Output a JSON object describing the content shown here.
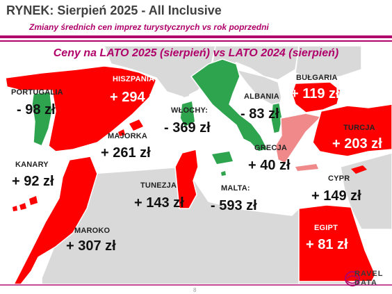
{
  "header": {
    "title": "RYNEK: Sierpień 2025 - All Inclusive",
    "subtitle": "Zmiany średnich cen imprez turystycznych vs rok poprzedni"
  },
  "map": {
    "title": "Ceny na LATO 2025 (sierpień) vs  LATO 2024 (sierpień)",
    "colors": {
      "increase": "#ff0000",
      "decrease": "#2ea44f",
      "moderate": "#f08a8a",
      "neutral": "#d9d9d9",
      "accent": "#b0006a"
    },
    "countries": [
      {
        "name": "PORTUGALIA",
        "change": "- 98 zł",
        "trend": "decrease"
      },
      {
        "name": "HISZPANIA:",
        "change": "+ 294 zł",
        "trend": "increase"
      },
      {
        "name": "MAJORKA",
        "change": "+ 261 zł",
        "trend": "increase"
      },
      {
        "name": "KANARY",
        "change": "+ 92 zł",
        "trend": "increase"
      },
      {
        "name": "MAROKO",
        "change": "+ 307 zł",
        "trend": "increase"
      },
      {
        "name": "TUNEZJA",
        "change": "+ 143 zł",
        "trend": "increase"
      },
      {
        "name": "WŁOCHY:",
        "change": "- 369 zł",
        "trend": "decrease"
      },
      {
        "name": "MALTA:",
        "change": "- 593 zł",
        "trend": "decrease"
      },
      {
        "name": "ALBANIA",
        "change": "- 83 zł",
        "trend": "decrease"
      },
      {
        "name": "GRECJA",
        "change": "+ 40 zł",
        "trend": "moderate"
      },
      {
        "name": "BUŁGARIA",
        "change": "+ 119 zł",
        "trend": "increase"
      },
      {
        "name": "TURCJA",
        "change": "+ 203 zł",
        "trend": "increase"
      },
      {
        "name": "CYPR",
        "change": "+ 149 zł",
        "trend": "increase"
      },
      {
        "name": "EGIPT",
        "change": "+ 81 zł",
        "trend": "increase"
      }
    ]
  },
  "footer": {
    "page_number": "8",
    "logo_line1": "RAVEL",
    "logo_line2": "DATA"
  }
}
